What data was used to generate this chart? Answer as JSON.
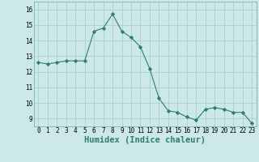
{
  "x": [
    0,
    1,
    2,
    3,
    4,
    5,
    6,
    7,
    8,
    9,
    10,
    11,
    12,
    13,
    14,
    15,
    16,
    17,
    18,
    19,
    20,
    21,
    22,
    23
  ],
  "y": [
    12.6,
    12.5,
    12.6,
    12.7,
    12.7,
    12.7,
    14.6,
    14.8,
    15.7,
    14.6,
    14.2,
    13.6,
    12.2,
    10.3,
    9.5,
    9.4,
    9.1,
    8.9,
    9.6,
    9.7,
    9.6,
    9.4,
    9.4,
    8.7
  ],
  "line_color": "#2e7d6e",
  "marker": "D",
  "marker_size": 2.2,
  "bg_color": "#cce8e8",
  "grid_color": "#aad0d0",
  "xlabel": "Humidex (Indice chaleur)",
  "xlim": [
    -0.5,
    23.5
  ],
  "ylim": [
    8.5,
    16.5
  ],
  "yticks": [
    9,
    10,
    11,
    12,
    13,
    14,
    15,
    16
  ],
  "xticks": [
    0,
    1,
    2,
    3,
    4,
    5,
    6,
    7,
    8,
    9,
    10,
    11,
    12,
    13,
    14,
    15,
    16,
    17,
    18,
    19,
    20,
    21,
    22,
    23
  ],
  "tick_fontsize": 5.5,
  "xlabel_fontsize": 7.5
}
